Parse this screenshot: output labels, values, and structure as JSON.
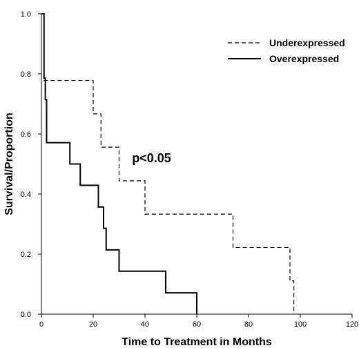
{
  "chart_data": {
    "type": "line",
    "step": true,
    "title": "",
    "xlabel": "Time to Treatment in Months",
    "ylabel": "Survival/Proportion",
    "xlim": [
      0,
      120
    ],
    "ylim": [
      0,
      1.0
    ],
    "xticks": [
      "0",
      "20",
      "40",
      "60",
      "80",
      "100",
      "120"
    ],
    "yticks": [
      "0.0",
      "0.2",
      "0.4",
      "0.6",
      "0.8",
      "1.0"
    ],
    "grid": false,
    "legend_position": "top-right",
    "annotation": "p<0.05",
    "series": [
      {
        "name": "Underexpressed",
        "style": "dashed",
        "color": "#000000",
        "x": [
          0,
          1,
          20,
          23,
          30,
          40,
          74,
          96,
          97.5
        ],
        "y": [
          1.0,
          0.778,
          0.667,
          0.556,
          0.444,
          0.333,
          0.222,
          0.111,
          0.0
        ]
      },
      {
        "name": "Overexpressed",
        "style": "solid",
        "color": "#000000",
        "x": [
          0,
          1,
          1.5,
          2,
          11,
          15,
          22,
          24,
          25,
          30,
          48,
          60
        ],
        "y": [
          1.0,
          0.786,
          0.714,
          0.571,
          0.5,
          0.429,
          0.357,
          0.286,
          0.214,
          0.143,
          0.071,
          0.0
        ]
      }
    ]
  }
}
